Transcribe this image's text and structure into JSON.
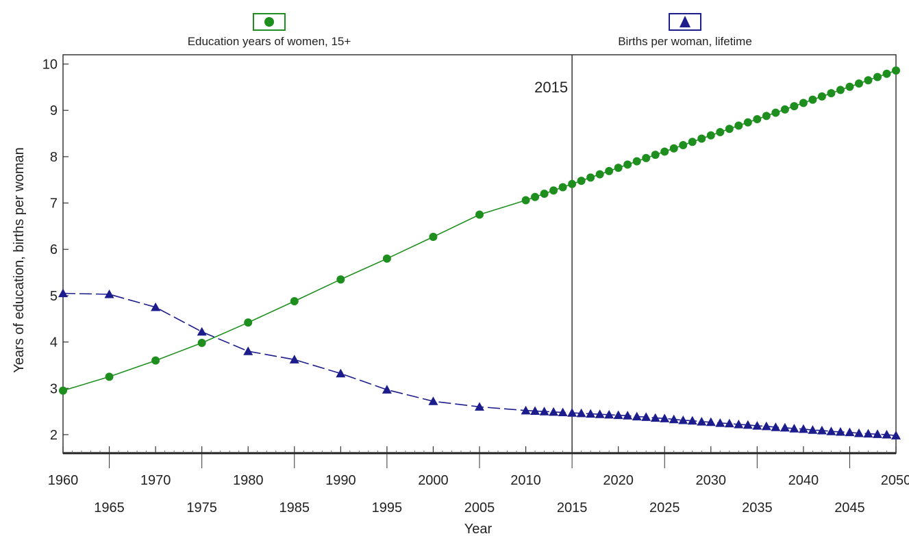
{
  "chart_data": {
    "type": "line",
    "title": "",
    "xlabel": "Year",
    "ylabel": "Years of education, births per woman",
    "xlim": [
      1960,
      2050
    ],
    "ylim": [
      1.6,
      10.2
    ],
    "x_ticks_upper": [
      "1960",
      "1970",
      "1980",
      "1990",
      "2000",
      "2010",
      "2020",
      "2030",
      "2040",
      "2050"
    ],
    "x_ticks_lower": [
      "1965",
      "1975",
      "1985",
      "1995",
      "2005",
      "2015",
      "2025",
      "2035",
      "2045"
    ],
    "y_ticks": [
      "2",
      "3",
      "4",
      "5",
      "6",
      "7",
      "8",
      "9",
      "10"
    ],
    "legend_position": "top",
    "annotation": {
      "x": 2015,
      "label": "2015"
    },
    "series": [
      {
        "name": "Education years of women, 15+",
        "color": "#1e8f1e",
        "marker": "circle",
        "line_style": "solid",
        "points": [
          [
            1960,
            2.95
          ],
          [
            1965,
            3.25
          ],
          [
            1970,
            3.6
          ],
          [
            1975,
            3.98
          ],
          [
            1980,
            4.42
          ],
          [
            1985,
            4.88
          ],
          [
            1990,
            5.35
          ],
          [
            1995,
            5.8
          ],
          [
            2000,
            6.27
          ],
          [
            2005,
            6.75
          ],
          [
            2010,
            7.06
          ],
          [
            2011,
            7.13
          ],
          [
            2012,
            7.2
          ],
          [
            2013,
            7.27
          ],
          [
            2014,
            7.34
          ],
          [
            2015,
            7.41
          ],
          [
            2016,
            7.48
          ],
          [
            2017,
            7.55
          ],
          [
            2018,
            7.62
          ],
          [
            2019,
            7.69
          ],
          [
            2020,
            7.76
          ],
          [
            2021,
            7.83
          ],
          [
            2022,
            7.9
          ],
          [
            2023,
            7.97
          ],
          [
            2024,
            8.04
          ],
          [
            2025,
            8.11
          ],
          [
            2026,
            8.18
          ],
          [
            2027,
            8.25
          ],
          [
            2028,
            8.32
          ],
          [
            2029,
            8.39
          ],
          [
            2030,
            8.46
          ],
          [
            2031,
            8.53
          ],
          [
            2032,
            8.6
          ],
          [
            2033,
            8.67
          ],
          [
            2034,
            8.74
          ],
          [
            2035,
            8.81
          ],
          [
            2036,
            8.88
          ],
          [
            2037,
            8.95
          ],
          [
            2038,
            9.02
          ],
          [
            2039,
            9.09
          ],
          [
            2040,
            9.16
          ],
          [
            2041,
            9.23
          ],
          [
            2042,
            9.3
          ],
          [
            2043,
            9.37
          ],
          [
            2044,
            9.44
          ],
          [
            2045,
            9.51
          ],
          [
            2046,
            9.58
          ],
          [
            2047,
            9.65
          ],
          [
            2048,
            9.72
          ],
          [
            2049,
            9.79
          ],
          [
            2050,
            9.86
          ]
        ]
      },
      {
        "name": "Births per woman, lifetime",
        "color": "#1c1c8c",
        "marker": "triangle",
        "line_style": "dashed",
        "points": [
          [
            1960,
            5.05
          ],
          [
            1965,
            5.03
          ],
          [
            1970,
            4.75
          ],
          [
            1975,
            4.22
          ],
          [
            1980,
            3.8
          ],
          [
            1985,
            3.62
          ],
          [
            1990,
            3.32
          ],
          [
            1995,
            2.97
          ],
          [
            2000,
            2.72
          ],
          [
            2005,
            2.6
          ],
          [
            2010,
            2.52
          ],
          [
            2011,
            2.51
          ],
          [
            2012,
            2.5
          ],
          [
            2013,
            2.49
          ],
          [
            2014,
            2.48
          ],
          [
            2015,
            2.47
          ],
          [
            2016,
            2.46
          ],
          [
            2017,
            2.45
          ],
          [
            2018,
            2.44
          ],
          [
            2019,
            2.43
          ],
          [
            2020,
            2.42
          ],
          [
            2021,
            2.41
          ],
          [
            2022,
            2.39
          ],
          [
            2023,
            2.38
          ],
          [
            2024,
            2.36
          ],
          [
            2025,
            2.35
          ],
          [
            2026,
            2.33
          ],
          [
            2027,
            2.31
          ],
          [
            2028,
            2.3
          ],
          [
            2029,
            2.28
          ],
          [
            2030,
            2.27
          ],
          [
            2031,
            2.25
          ],
          [
            2032,
            2.24
          ],
          [
            2033,
            2.22
          ],
          [
            2034,
            2.21
          ],
          [
            2035,
            2.19
          ],
          [
            2036,
            2.18
          ],
          [
            2037,
            2.16
          ],
          [
            2038,
            2.15
          ],
          [
            2039,
            2.13
          ],
          [
            2040,
            2.12
          ],
          [
            2041,
            2.1
          ],
          [
            2042,
            2.09
          ],
          [
            2043,
            2.07
          ],
          [
            2044,
            2.06
          ],
          [
            2045,
            2.05
          ],
          [
            2046,
            2.03
          ],
          [
            2047,
            2.02
          ],
          [
            2048,
            2.01
          ],
          [
            2049,
            2.0
          ],
          [
            2050,
            1.98
          ]
        ]
      }
    ]
  }
}
